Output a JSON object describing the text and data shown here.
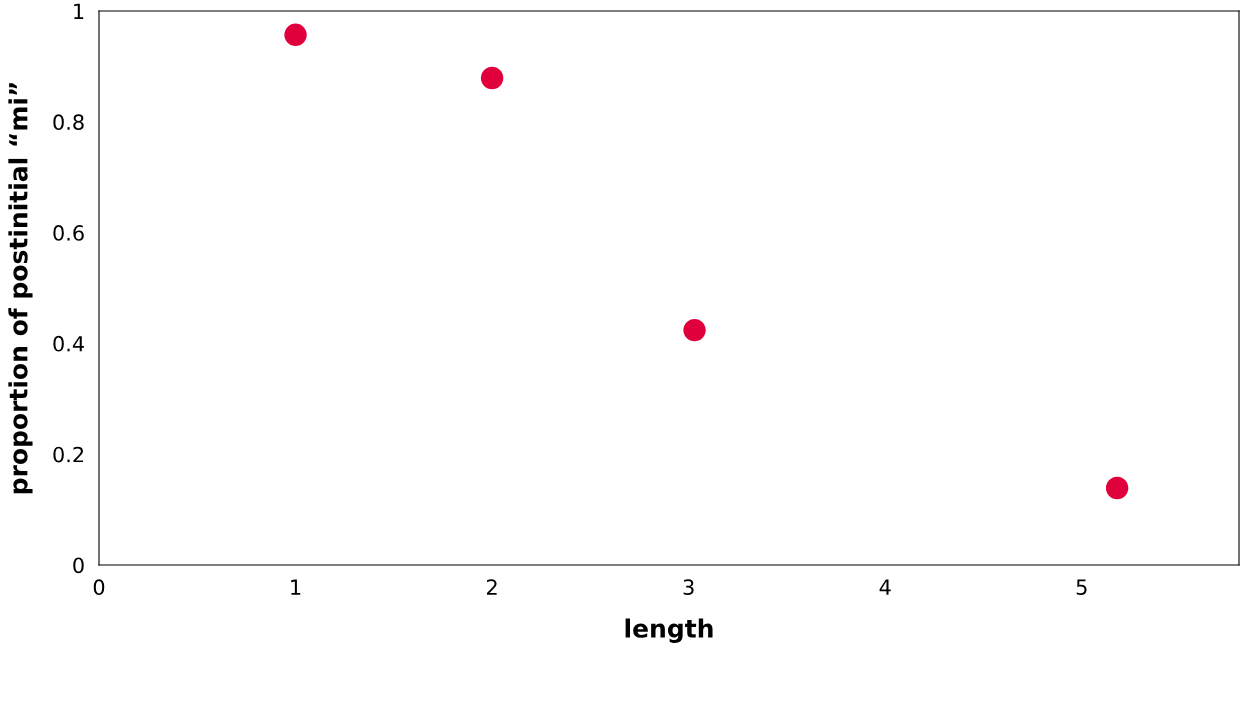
{
  "chart_data": {
    "type": "scatter",
    "xlabel": "length",
    "ylabel": "proportion of postinitial “mi”",
    "x": [
      1.0,
      2.0,
      3.03,
      5.18
    ],
    "series": [
      {
        "color": "#e0003c",
        "values": [
          0.957,
          0.879,
          0.424,
          0.139
        ]
      }
    ],
    "xlim": [
      0,
      5.8
    ],
    "xticks": [
      0,
      1,
      2,
      3,
      4,
      5
    ],
    "ylim": [
      0,
      1
    ],
    "yticks": [
      0,
      0.2,
      0.4,
      0.6,
      0.8,
      1
    ],
    "marker": "circle",
    "grid": false,
    "legend": false
  }
}
